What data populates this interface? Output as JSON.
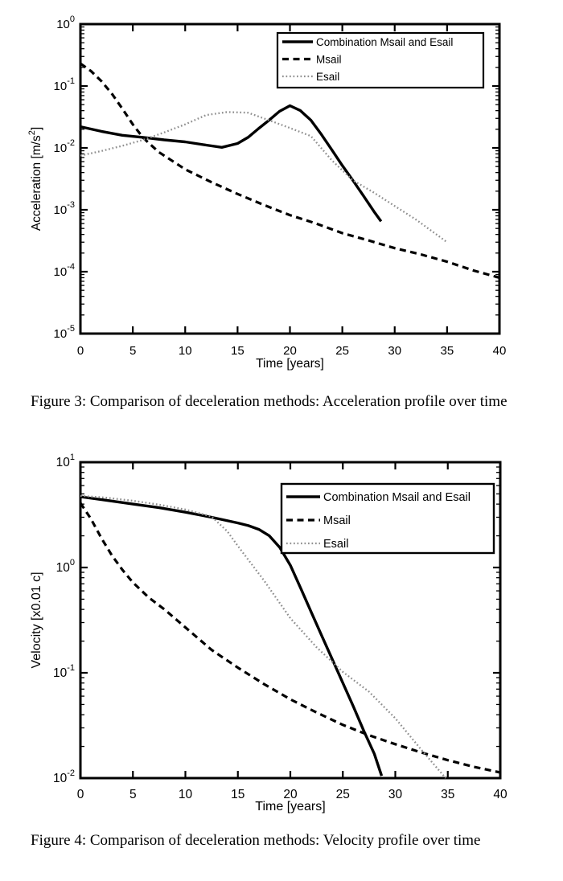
{
  "captions": {
    "figure3": "Figure 3: Comparison of deceleration methods: Acceleration profile over time",
    "figure4": "Figure 4: Comparison of deceleration methods: Velocity profile over time"
  },
  "colors": {
    "line_black": "#000000",
    "esail_gray": "#8f8f8f",
    "background": "#ffffff"
  },
  "chart_data": [
    {
      "id": "acceleration",
      "type": "line",
      "title": "",
      "xlabel": "Time [years]",
      "ylabel": "Acceleration [m/s2]",
      "ylabel_parts": {
        "pre": "Acceleration [m/s",
        "sup": "2",
        "post": "]"
      },
      "xlim": [
        0,
        40
      ],
      "x_ticks": [
        0,
        5,
        10,
        15,
        20,
        25,
        30,
        35,
        40
      ],
      "y_scale": "log",
      "y_exponent_range": [
        -5,
        0
      ],
      "y_tick_exponents": [
        0,
        -1,
        -2,
        -3,
        -4,
        -5
      ],
      "grid": false,
      "legend_position": "top-right",
      "series": [
        {
          "name": "Combination Msail and Esail",
          "style": "solid",
          "color": "#000000",
          "x": [
            0,
            2,
            4,
            6,
            8,
            10,
            12,
            13.5,
            15,
            16,
            17,
            18,
            19,
            20,
            21,
            22,
            23,
            24,
            25,
            26,
            27,
            28,
            28.7
          ],
          "y": [
            0.022,
            0.0185,
            0.016,
            0.0148,
            0.0135,
            0.0125,
            0.0111,
            0.0102,
            0.0118,
            0.0148,
            0.0205,
            0.028,
            0.039,
            0.048,
            0.04,
            0.028,
            0.0165,
            0.0093,
            0.0052,
            0.003,
            0.0017,
            0.00095,
            0.00065
          ]
        },
        {
          "name": "Msail",
          "style": "dashed",
          "color": "#000000",
          "x": [
            0,
            1,
            2,
            3,
            4,
            5,
            6,
            7.5,
            10,
            12.5,
            15,
            17.5,
            20,
            22.5,
            25,
            27.5,
            30,
            32.5,
            35,
            37.5,
            40
          ],
          "y": [
            0.23,
            0.175,
            0.12,
            0.075,
            0.043,
            0.024,
            0.0145,
            0.0085,
            0.0045,
            0.0028,
            0.0018,
            0.0012,
            0.00082,
            0.0006,
            0.00042,
            0.00032,
            0.00024,
            0.00019,
            0.000145,
            0.000105,
            8e-05
          ]
        },
        {
          "name": "Esail",
          "style": "dotted",
          "color": "#8f8f8f",
          "x": [
            0,
            2,
            4,
            6,
            8,
            10,
            12,
            14,
            16,
            18,
            20,
            22,
            24,
            26,
            28,
            30,
            32,
            35
          ],
          "y": [
            0.0075,
            0.0089,
            0.0108,
            0.0135,
            0.0178,
            0.024,
            0.034,
            0.038,
            0.037,
            0.028,
            0.021,
            0.0155,
            0.0063,
            0.003,
            0.0019,
            0.00115,
            0.0007,
            0.0003
          ]
        }
      ]
    },
    {
      "id": "velocity",
      "type": "line",
      "title": "",
      "xlabel": "Time [years]",
      "ylabel": "Velocity [x0.01 c]",
      "ylabel_parts": {
        "pre": "Velocity [x0.01 c]",
        "sup": "",
        "post": ""
      },
      "xlim": [
        0,
        40
      ],
      "x_ticks": [
        0,
        5,
        10,
        15,
        20,
        25,
        30,
        35,
        40
      ],
      "y_scale": "log",
      "y_exponent_range": [
        -2,
        1
      ],
      "y_tick_exponents": [
        1,
        0,
        -1,
        -2
      ],
      "grid": false,
      "legend_position": "top-right",
      "series": [
        {
          "name": "Combination Msail and Esail",
          "style": "solid",
          "color": "#000000",
          "x": [
            0,
            2.5,
            5,
            7.5,
            10,
            12.5,
            15,
            16,
            17,
            18,
            19,
            20,
            21,
            22,
            23,
            24,
            25,
            26,
            27,
            28,
            28.7
          ],
          "y": [
            4.7,
            4.35,
            4.0,
            3.7,
            3.35,
            3.0,
            2.65,
            2.5,
            2.3,
            2.0,
            1.55,
            1.05,
            0.63,
            0.375,
            0.224,
            0.134,
            0.08,
            0.048,
            0.028,
            0.017,
            0.0105
          ]
        },
        {
          "name": "Msail",
          "style": "dashed",
          "color": "#000000",
          "x": [
            0,
            1,
            2,
            3,
            4,
            5,
            6.5,
            8,
            10,
            12.5,
            15,
            17.5,
            20,
            22.5,
            25,
            27.5,
            30,
            32.5,
            35,
            37.5,
            40
          ],
          "y": [
            4.1,
            2.9,
            1.9,
            1.3,
            0.95,
            0.72,
            0.52,
            0.4,
            0.27,
            0.165,
            0.112,
            0.078,
            0.056,
            0.042,
            0.032,
            0.0255,
            0.021,
            0.0175,
            0.0148,
            0.0128,
            0.0113
          ]
        },
        {
          "name": "Esail",
          "style": "dotted",
          "color": "#8f8f8f",
          "x": [
            0,
            2.5,
            5,
            7.5,
            10,
            12.5,
            14,
            15,
            17.5,
            20,
            22.5,
            25,
            27.5,
            30,
            32.5,
            34.8
          ],
          "y": [
            4.8,
            4.6,
            4.3,
            3.95,
            3.55,
            3.05,
            2.2,
            1.6,
            0.75,
            0.33,
            0.175,
            0.102,
            0.066,
            0.037,
            0.0185,
            0.01
          ]
        }
      ]
    }
  ]
}
